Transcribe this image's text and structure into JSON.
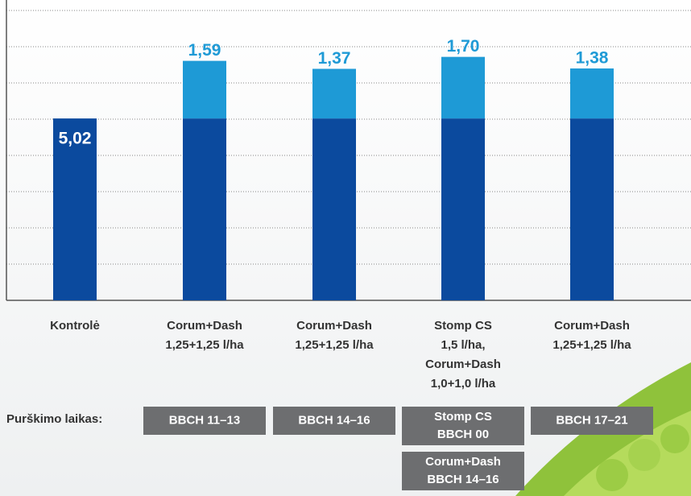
{
  "chart_data": {
    "type": "stacked-bar",
    "categories": [
      [
        "Kontrolė"
      ],
      [
        "Corum+Dash",
        "1,25+1,25 l/ha"
      ],
      [
        "Corum+Dash",
        "1,25+1,25 l/ha"
      ],
      [
        "Stomp CS",
        "1,5 l/ha,",
        "Corum+Dash",
        "1,0+1,0 l/ha"
      ],
      [
        "Corum+Dash",
        "1,25+1,25 l/ha"
      ]
    ],
    "series": [
      {
        "color": "#0b4a9e",
        "values": [
          5.02,
          5.02,
          5.02,
          5.02,
          5.02
        ],
        "value_labels": [
          "5,02",
          null,
          null,
          null,
          null
        ],
        "label_color": "#ffffff"
      },
      {
        "color": "#1e9ad6",
        "values": [
          null,
          1.59,
          1.37,
          1.7,
          1.38
        ],
        "value_labels": [
          null,
          "1,59",
          "1,37",
          "1,70",
          "1,38"
        ],
        "label_color": "#1e9ad6"
      }
    ],
    "ylim": [
      0,
      8.29
    ],
    "yticks": [
      1,
      2,
      3,
      4,
      5,
      6,
      7,
      8
    ],
    "grid": true,
    "timing_title": "Purškimo laikas:",
    "timing": [
      null,
      [
        [
          "BBCH 11–13"
        ]
      ],
      [
        [
          "BBCH 14–16"
        ]
      ],
      [
        [
          "Stomp CS",
          "BBCH 00"
        ],
        [
          "Corum+Dash",
          "BBCH 14–16"
        ]
      ],
      [
        [
          "BBCH 17–21"
        ]
      ]
    ]
  }
}
